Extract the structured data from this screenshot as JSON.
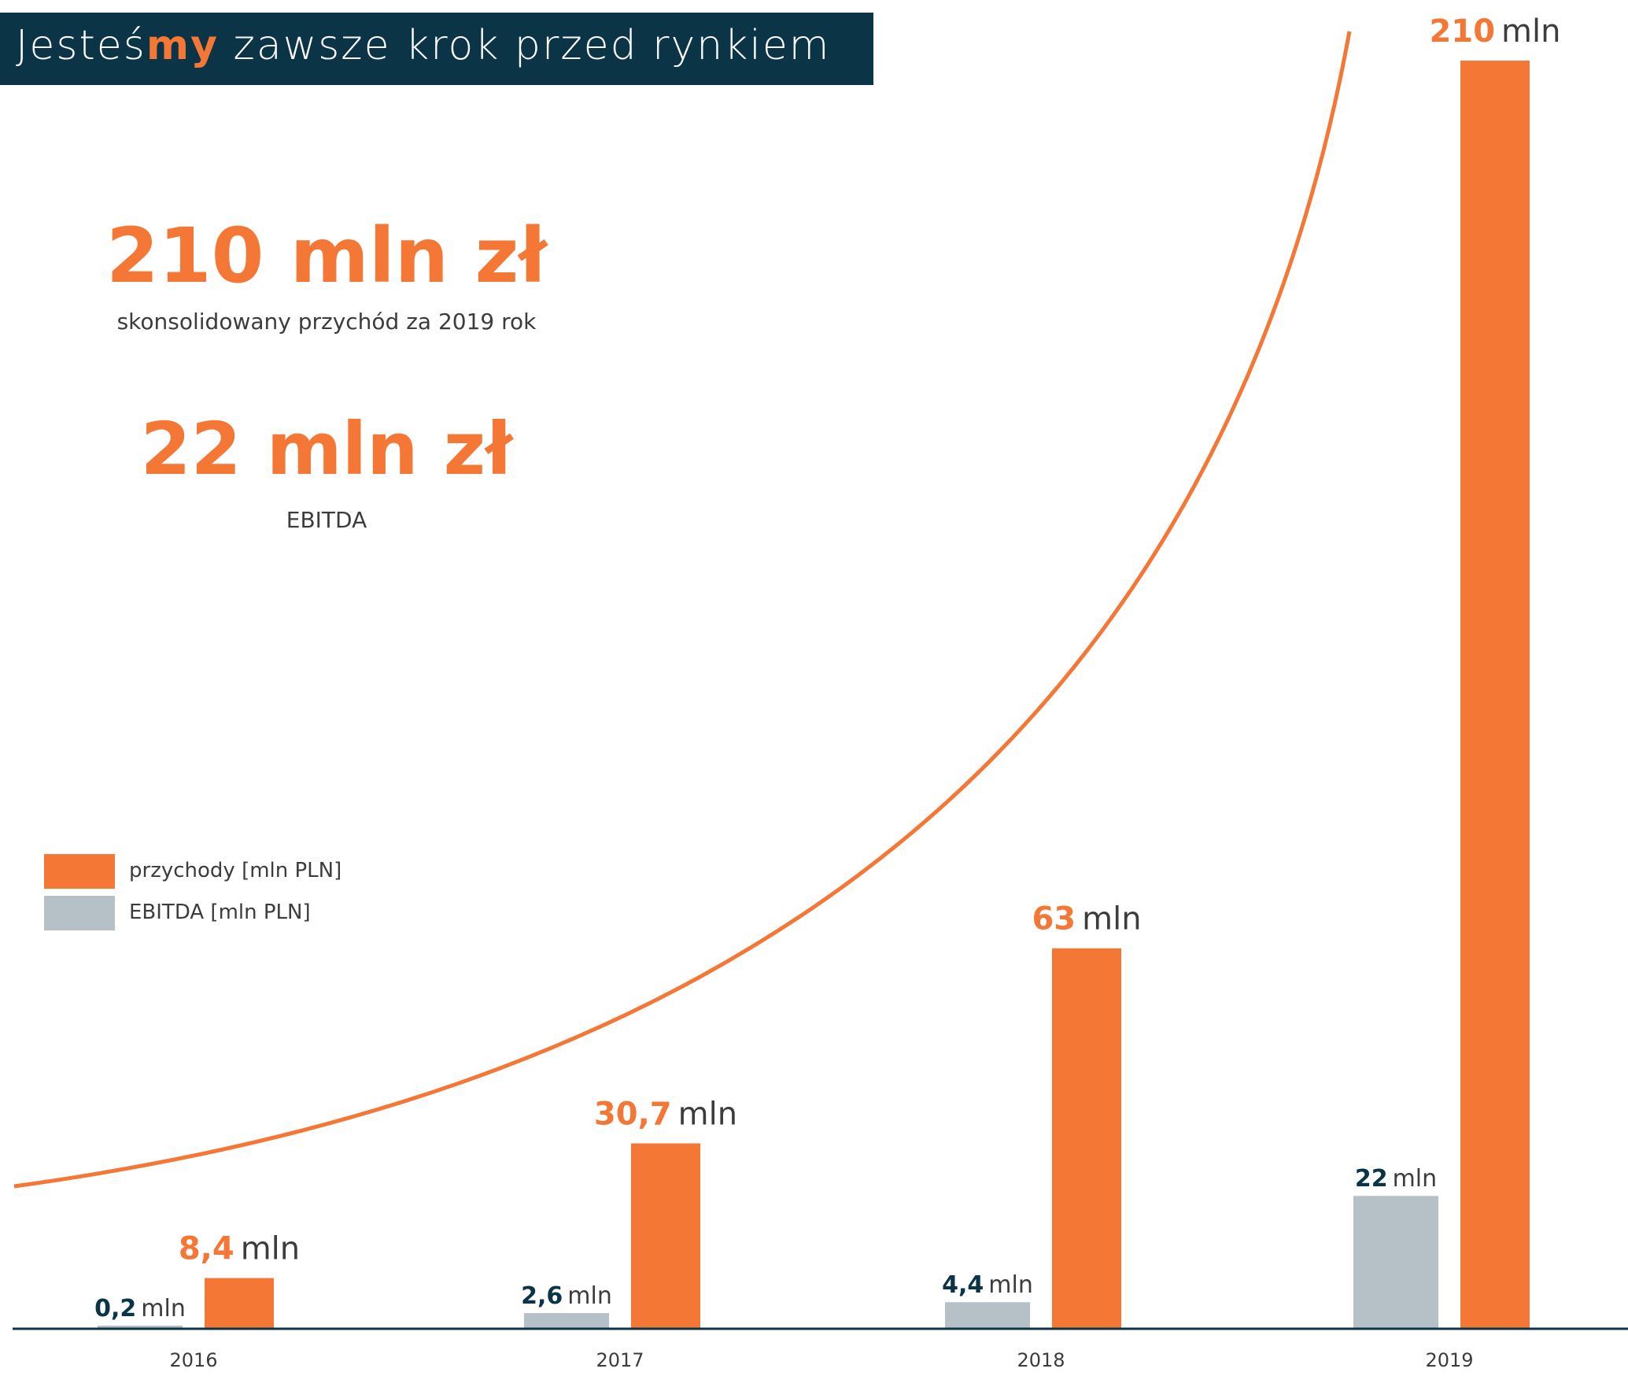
{
  "header": {
    "title_pre": "Jesteś",
    "title_highlight": "my",
    "title_post": " zawsze krok przed rynkiem"
  },
  "kpis": [
    {
      "value": "210 mln zł",
      "caption": "skonsolidowany przychód za 2019 rok"
    },
    {
      "value": "22 mln zł",
      "caption": "EBITDA"
    }
  ],
  "colors": {
    "brand_dark": "#0b3447",
    "accent_orange": "#f47735",
    "ebitda_gray": "#b5c1c6",
    "axis": "#0b3447"
  },
  "chart_data": {
    "type": "bar",
    "categories": [
      "2016",
      "2017",
      "2018",
      "2019"
    ],
    "series": [
      {
        "name": "EBITDA [mln PLN]",
        "values": [
          0.2,
          2.6,
          4.4,
          22
        ],
        "labels": [
          "0,2",
          "2,6",
          "4,4",
          "22"
        ],
        "color": "#b5c1c6"
      },
      {
        "name": "przychody [mln PLN]",
        "values": [
          8.4,
          30.7,
          63,
          210
        ],
        "labels": [
          "8,4",
          "30,7",
          "63",
          "210"
        ],
        "color": "#f47735"
      }
    ],
    "unit": "mln",
    "trend_line": "exponential",
    "legend_position": "left-middle",
    "grid": false,
    "ylim": [
      0,
      210
    ]
  }
}
